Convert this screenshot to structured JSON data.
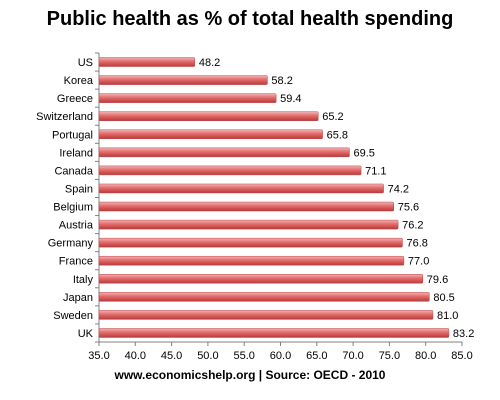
{
  "chart_data": {
    "type": "bar",
    "orientation": "horizontal",
    "title": "Public health as % of total health spending",
    "xlabel": "",
    "ylabel": "",
    "footer": "www.economicshelp.org | Source: OECD - 2010",
    "categories": [
      "US",
      "Korea",
      "Greece",
      "Switzerland",
      "Portugal",
      "Ireland",
      "Canada",
      "Spain",
      "Belgium",
      "Austria",
      "Germany",
      "France",
      "Italy",
      "Japan",
      "Sweden",
      "UK"
    ],
    "values": [
      48.2,
      58.2,
      59.4,
      65.2,
      65.8,
      69.5,
      71.1,
      74.2,
      75.6,
      76.2,
      76.8,
      77.0,
      79.6,
      80.5,
      81.0,
      83.2
    ],
    "value_labels": [
      "48.2",
      "58.2",
      "59.4",
      "65.2",
      "65.8",
      "69.5",
      "71.1",
      "74.2",
      "75.6",
      "76.2",
      "76.8",
      "77.0",
      "79.6",
      "80.5",
      "81.0",
      "83.2"
    ],
    "xlim": [
      35,
      85
    ],
    "xticks": [
      35,
      40,
      45,
      50,
      55,
      60,
      65,
      70,
      75,
      80,
      85
    ],
    "xtick_labels": [
      "35.0",
      "40.0",
      "45.0",
      "50.0",
      "55.0",
      "60.0",
      "65.0",
      "70.0",
      "75.0",
      "80.0",
      "85.0"
    ],
    "grid": false,
    "legend": "none",
    "bar_color": "#e06666"
  }
}
